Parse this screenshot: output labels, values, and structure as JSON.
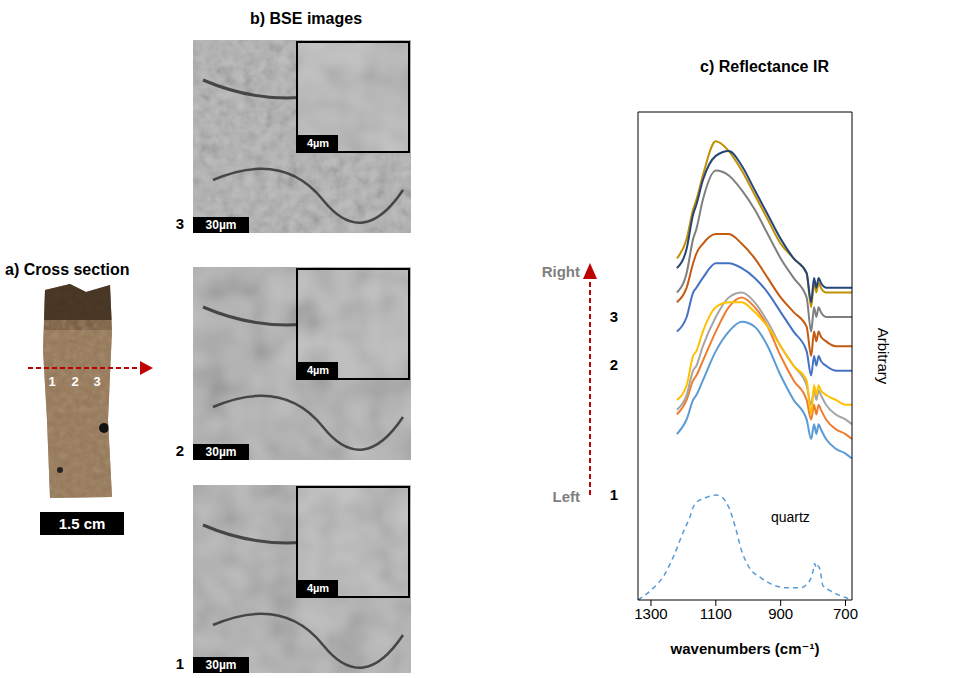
{
  "panels": {
    "a": {
      "title": "a) Cross section",
      "points": [
        "1",
        "2",
        "3"
      ],
      "scale_bar": "1.5 cm"
    },
    "b": {
      "title": "b) BSE images",
      "images": [
        {
          "label": "3",
          "scale_bar": "30µm",
          "inset_scale_bar": "4µm"
        },
        {
          "label": "2",
          "scale_bar": "30µm",
          "inset_scale_bar": "4µm"
        },
        {
          "label": "1",
          "scale_bar": "30µm",
          "inset_scale_bar": "4µm"
        }
      ]
    }
  },
  "chart_data": {
    "type": "line",
    "title": "c) Reflectance IR",
    "x_label": "wavenumbers (cm⁻¹)",
    "y_label": "Arbitrary",
    "xlim": [
      1340,
      680
    ],
    "xticks": [
      1300,
      1100,
      900,
      700
    ],
    "ylim": [
      0,
      100
    ],
    "yticks": [],
    "tick_labels": "x",
    "direction_labels": {
      "top": "Right",
      "bottom": "Left"
    },
    "position_labels": [
      "1",
      "2",
      "3"
    ],
    "x": [
      1220,
      1190,
      1170,
      1160,
      1140,
      1100,
      1060,
      1020,
      980,
      940,
      900,
      860,
      820,
      806,
      797,
      790,
      783,
      776,
      760,
      730,
      700,
      680
    ],
    "series": [
      {
        "color": "#5b9bd5",
        "values": [
          34,
          37,
          41,
          42,
          45,
          51,
          55,
          57,
          56,
          52,
          46,
          41,
          37,
          33,
          36,
          34,
          36,
          35,
          33,
          31,
          30,
          29
        ]
      },
      {
        "color": "#ed7d31",
        "values": [
          38,
          41,
          45,
          46,
          49,
          55,
          60,
          62,
          60,
          56,
          50,
          45,
          41,
          37,
          40,
          38,
          40,
          39,
          37,
          35,
          34,
          33
        ]
      },
      {
        "color": "#a5a5a5",
        "values": [
          39,
          42,
          47,
          48,
          52,
          58,
          62,
          63,
          61,
          57,
          52,
          48,
          44,
          40,
          43,
          41,
          43,
          42,
          40,
          38,
          37,
          36
        ]
      },
      {
        "color": "#ffc000",
        "values": [
          41,
          44,
          50,
          51,
          55,
          60,
          61,
          61,
          59,
          56,
          52,
          48,
          45,
          38,
          44,
          42,
          44,
          43,
          42,
          41,
          40,
          40
        ]
      },
      {
        "color": "#4472c4",
        "values": [
          55,
          58,
          63,
          64,
          66,
          69,
          69,
          68,
          66,
          63,
          59,
          55,
          51,
          46,
          50,
          48,
          50,
          49,
          48,
          47,
          47,
          47
        ]
      },
      {
        "color": "#c55a11",
        "values": [
          61,
          64,
          69,
          71,
          73,
          75,
          75,
          73,
          70,
          66,
          62,
          59,
          56,
          50,
          55,
          53,
          55,
          54,
          53,
          52,
          52,
          52
        ]
      },
      {
        "color": "#7f7f7f",
        "values": [
          63,
          67,
          74,
          76,
          82,
          88,
          87,
          84,
          80,
          75,
          70,
          66,
          62,
          55,
          60,
          58,
          60,
          59,
          58,
          58,
          58,
          58
        ]
      },
      {
        "color": "#bf9000",
        "values": [
          70,
          74,
          80,
          82,
          87,
          94,
          92,
          88,
          83,
          78,
          73,
          70,
          67,
          60,
          65,
          63,
          65,
          64,
          63,
          63,
          63,
          63
        ]
      },
      {
        "color": "#264478",
        "values": [
          68,
          72,
          79,
          81,
          86,
          91,
          92,
          89,
          84,
          79,
          74,
          70,
          67,
          61,
          66,
          64,
          66,
          65,
          64,
          64,
          64,
          64
        ]
      },
      {
        "color": "#5b9bd5",
        "line_style": "dashed",
        "x": [
          1340,
          1300,
          1260,
          1230,
          1200,
          1180,
          1170,
          1160,
          1130,
          1100,
          1080,
          1060,
          1040,
          1020,
          1000,
          960,
          920,
          880,
          840,
          810,
          800,
          795,
          790,
          785,
          778,
          770,
          750,
          720,
          700,
          680
        ],
        "values": [
          0,
          2,
          5,
          9,
          14,
          17,
          19,
          20,
          21,
          21.5,
          21,
          19,
          15,
          10,
          7,
          4.5,
          3,
          2.5,
          2.5,
          4,
          6,
          7.5,
          6.5,
          7,
          6,
          3,
          2,
          1,
          0.5,
          0
        ]
      }
    ],
    "annotations": [
      {
        "text": "quartz",
        "x": 870,
        "y": 17
      }
    ]
  }
}
